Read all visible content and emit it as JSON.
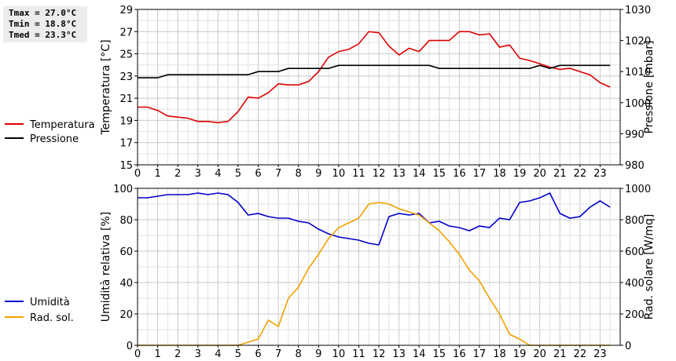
{
  "stats": {
    "tmax": "Tmax = 27.0°C",
    "tmin": "Tmin = 18.8°C",
    "tmed": "Tmed = 23.3°C"
  },
  "chart_data": [
    {
      "type": "line",
      "xlim": [
        0,
        24
      ],
      "x_ticks": [
        0,
        1,
        2,
        3,
        4,
        5,
        6,
        7,
        8,
        9,
        10,
        11,
        12,
        13,
        14,
        15,
        16,
        17,
        18,
        19,
        20,
        21,
        22,
        23
      ],
      "grid": true,
      "legend_position": "left",
      "y_left": {
        "label": "Temperatura [°C]",
        "lim": [
          15,
          29
        ],
        "ticks": [
          15,
          17,
          19,
          21,
          23,
          25,
          27,
          29
        ]
      },
      "y_right": {
        "label": "Pressione [mbar]",
        "lim": [
          980,
          1030
        ],
        "ticks": [
          980,
          990,
          1000,
          1010,
          1020,
          1030
        ]
      },
      "series": [
        {
          "name": "Temperatura",
          "axis": "left",
          "color": "#dd0000",
          "x": [
            0,
            0.5,
            1,
            1.5,
            2,
            2.5,
            3,
            3.5,
            4,
            4.5,
            5,
            5.5,
            6,
            6.5,
            7,
            7.5,
            8,
            8.5,
            9,
            9.5,
            10,
            10.5,
            11,
            11.5,
            12,
            12.5,
            13,
            13.5,
            14,
            14.5,
            15,
            15.5,
            16,
            16.5,
            17,
            17.5,
            18,
            18.5,
            19,
            19.5,
            20,
            20.5,
            21,
            21.5,
            22,
            22.5,
            23,
            23.5
          ],
          "values": [
            20.2,
            20.2,
            19.9,
            19.4,
            19.3,
            19.2,
            18.9,
            18.9,
            18.8,
            18.9,
            19.8,
            21.1,
            21.0,
            21.5,
            22.3,
            22.2,
            22.2,
            22.5,
            23.4,
            24.7,
            25.2,
            25.4,
            25.9,
            27.0,
            26.9,
            25.7,
            24.9,
            25.5,
            25.2,
            26.2,
            26.2,
            26.2,
            27.0,
            27.0,
            26.7,
            26.8,
            25.6,
            25.8,
            24.6,
            24.4,
            24.1,
            23.8,
            23.6,
            23.7,
            23.4,
            23.1,
            22.4,
            22.0
          ]
        },
        {
          "name": "Pressione",
          "axis": "right",
          "color": "#000000",
          "x": [
            0,
            0.5,
            1,
            1.5,
            2,
            2.5,
            3,
            3.5,
            4,
            4.5,
            5,
            5.5,
            6,
            6.5,
            7,
            7.5,
            8,
            8.5,
            9,
            9.5,
            10,
            10.5,
            11,
            11.5,
            12,
            12.5,
            13,
            13.5,
            14,
            14.5,
            15,
            15.5,
            16,
            16.5,
            17,
            17.5,
            18,
            18.5,
            19,
            19.5,
            20,
            20.5,
            21,
            21.5,
            22,
            22.5,
            23,
            23.5
          ],
          "values": [
            1008,
            1008,
            1008,
            1009,
            1009,
            1009,
            1009,
            1009,
            1009,
            1009,
            1009,
            1009,
            1010,
            1010,
            1010,
            1011,
            1011,
            1011,
            1011,
            1011,
            1012,
            1012,
            1012,
            1012,
            1012,
            1012,
            1012,
            1012,
            1012,
            1012,
            1011,
            1011,
            1011,
            1011,
            1011,
            1011,
            1011,
            1011,
            1011,
            1011,
            1012,
            1011,
            1012,
            1012,
            1012,
            1012,
            1012,
            1012
          ]
        }
      ]
    },
    {
      "type": "line",
      "xlim": [
        0,
        24
      ],
      "x_ticks": [
        0,
        1,
        2,
        3,
        4,
        5,
        6,
        7,
        8,
        9,
        10,
        11,
        12,
        13,
        14,
        15,
        16,
        17,
        18,
        19,
        20,
        21,
        22,
        23
      ],
      "grid": true,
      "legend_position": "left",
      "y_left": {
        "label": "Umidità relativa [%]",
        "lim": [
          0,
          100
        ],
        "ticks": [
          0,
          20,
          40,
          60,
          80,
          100
        ]
      },
      "y_right": {
        "label": "Rad. solare [W/mq]",
        "lim": [
          0,
          1000
        ],
        "ticks": [
          0,
          200,
          400,
          600,
          800,
          1000
        ]
      },
      "series": [
        {
          "name": "Umidità",
          "axis": "left",
          "color": "#0000cc",
          "x": [
            0,
            0.5,
            1,
            1.5,
            2,
            2.5,
            3,
            3.5,
            4,
            4.5,
            5,
            5.5,
            6,
            6.5,
            7,
            7.5,
            8,
            8.5,
            9,
            9.5,
            10,
            10.5,
            11,
            11.5,
            12,
            12.5,
            13,
            13.5,
            14,
            14.5,
            15,
            15.5,
            16,
            16.5,
            17,
            17.5,
            18,
            18.5,
            19,
            19.5,
            20,
            20.5,
            21,
            21.5,
            22,
            22.5,
            23,
            23.5
          ],
          "values": [
            94,
            94,
            95,
            96,
            96,
            96,
            97,
            96,
            97,
            96,
            91,
            83,
            84,
            82,
            81,
            81,
            79,
            78,
            74,
            71,
            69,
            68,
            67,
            65,
            64,
            82,
            84,
            83,
            84,
            78,
            79,
            76,
            75,
            73,
            76,
            75,
            81,
            80,
            91,
            92,
            94,
            97,
            84,
            81,
            82,
            88,
            92,
            88
          ]
        },
        {
          "name": "Rad. sol.",
          "axis": "right",
          "color": "#f0a000",
          "x": [
            0,
            0.5,
            1,
            1.5,
            2,
            2.5,
            3,
            3.5,
            4,
            4.5,
            5,
            5.5,
            6,
            6.5,
            7,
            7.5,
            8,
            8.5,
            9,
            9.5,
            10,
            10.5,
            11,
            11.5,
            12,
            12.5,
            13,
            13.5,
            14,
            14.5,
            15,
            15.5,
            16,
            16.5,
            17,
            17.5,
            18,
            18.5,
            19,
            19.5,
            20,
            20.5,
            21,
            21.5,
            22,
            22.5,
            23,
            23.5
          ],
          "values": [
            0,
            0,
            0,
            0,
            0,
            0,
            0,
            0,
            0,
            0,
            0,
            20,
            40,
            160,
            120,
            300,
            370,
            490,
            580,
            680,
            750,
            780,
            810,
            900,
            910,
            900,
            870,
            850,
            830,
            780,
            730,
            660,
            580,
            480,
            410,
            300,
            200,
            70,
            40,
            0,
            0,
            0,
            0,
            0,
            0,
            0,
            0,
            0
          ]
        }
      ]
    }
  ]
}
